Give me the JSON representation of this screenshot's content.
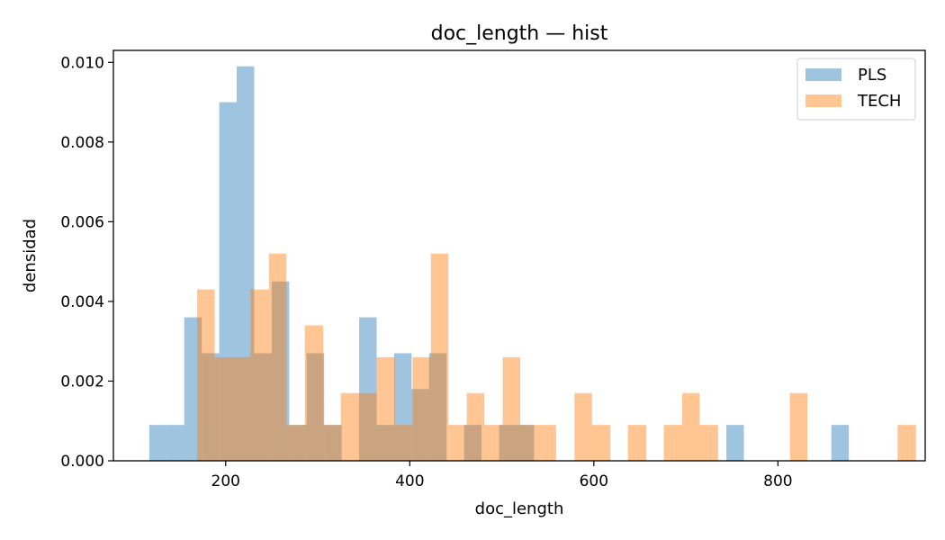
{
  "chart_data": {
    "type": "histogram",
    "title": "doc_length — hist",
    "xlabel": "doc_length",
    "ylabel": "densidad",
    "xlim": [
      78,
      960
    ],
    "ylim": [
      0,
      0.0103
    ],
    "xticks": [
      200,
      400,
      600,
      800
    ],
    "xtick_labels": [
      "200",
      "400",
      "600",
      "800"
    ],
    "yticks": [
      0,
      0.002,
      0.004,
      0.006,
      0.008,
      0.01
    ],
    "ytick_labels": [
      "0.000",
      "0.002",
      "0.004",
      "0.006",
      "0.008",
      "0.010"
    ],
    "legend_position": "top-right",
    "grid": false,
    "series": [
      {
        "name": "PLS",
        "color": "#1f77b4",
        "alpha": 0.43,
        "bins": [
          {
            "x0": 117,
            "x1": 136,
            "density": 0.0009
          },
          {
            "x0": 136,
            "x1": 155,
            "density": 0.0009
          },
          {
            "x0": 155,
            "x1": 174,
            "density": 0.0036
          },
          {
            "x0": 174,
            "x1": 193,
            "density": 0.0027
          },
          {
            "x0": 193,
            "x1": 212,
            "density": 0.009
          },
          {
            "x0": 212,
            "x1": 231,
            "density": 0.0099
          },
          {
            "x0": 231,
            "x1": 250,
            "density": 0.0027
          },
          {
            "x0": 250,
            "x1": 269,
            "density": 0.0045
          },
          {
            "x0": 269,
            "x1": 288,
            "density": 0.0009
          },
          {
            "x0": 288,
            "x1": 307,
            "density": 0.0027
          },
          {
            "x0": 307,
            "x1": 326,
            "density": 0.0009
          },
          {
            "x0": 345,
            "x1": 364,
            "density": 0.0036
          },
          {
            "x0": 364,
            "x1": 383,
            "density": 0.0009
          },
          {
            "x0": 383,
            "x1": 402,
            "density": 0.0027
          },
          {
            "x0": 402,
            "x1": 421,
            "density": 0.0018
          },
          {
            "x0": 421,
            "x1": 440,
            "density": 0.0027
          },
          {
            "x0": 459,
            "x1": 478,
            "density": 0.0009
          },
          {
            "x0": 497,
            "x1": 516,
            "density": 0.0009
          },
          {
            "x0": 516,
            "x1": 535,
            "density": 0.0009
          },
          {
            "x0": 744,
            "x1": 763,
            "density": 0.0009
          },
          {
            "x0": 858,
            "x1": 877,
            "density": 0.0009
          }
        ]
      },
      {
        "name": "TECH",
        "color": "#ff7f0e",
        "alpha": 0.45,
        "bins": [
          {
            "x0": 169,
            "x1": 188,
            "density": 0.0043
          },
          {
            "x0": 188,
            "x1": 208,
            "density": 0.0026
          },
          {
            "x0": 208,
            "x1": 227,
            "density": 0.0026
          },
          {
            "x0": 227,
            "x1": 247,
            "density": 0.0043
          },
          {
            "x0": 247,
            "x1": 266,
            "density": 0.0052
          },
          {
            "x0": 266,
            "x1": 286,
            "density": 0.0009
          },
          {
            "x0": 286,
            "x1": 306,
            "density": 0.0034
          },
          {
            "x0": 306,
            "x1": 325,
            "density": 0.0009
          },
          {
            "x0": 325,
            "x1": 345,
            "density": 0.0017
          },
          {
            "x0": 345,
            "x1": 364,
            "density": 0.0017
          },
          {
            "x0": 364,
            "x1": 384,
            "density": 0.0026
          },
          {
            "x0": 384,
            "x1": 403,
            "density": 0.0009
          },
          {
            "x0": 403,
            "x1": 423,
            "density": 0.0026
          },
          {
            "x0": 423,
            "x1": 442,
            "density": 0.0052
          },
          {
            "x0": 442,
            "x1": 462,
            "density": 0.0009
          },
          {
            "x0": 462,
            "x1": 481,
            "density": 0.0017
          },
          {
            "x0": 481,
            "x1": 501,
            "density": 0.0009
          },
          {
            "x0": 501,
            "x1": 520,
            "density": 0.0026
          },
          {
            "x0": 520,
            "x1": 540,
            "density": 0.0009
          },
          {
            "x0": 540,
            "x1": 559,
            "density": 0.0009
          },
          {
            "x0": 579,
            "x1": 598,
            "density": 0.0017
          },
          {
            "x0": 598,
            "x1": 618,
            "density": 0.0009
          },
          {
            "x0": 637,
            "x1": 657,
            "density": 0.0009
          },
          {
            "x0": 676,
            "x1": 696,
            "density": 0.0009
          },
          {
            "x0": 696,
            "x1": 715,
            "density": 0.0017
          },
          {
            "x0": 715,
            "x1": 735,
            "density": 0.0009
          },
          {
            "x0": 813,
            "x1": 832,
            "density": 0.0017
          },
          {
            "x0": 930,
            "x1": 950,
            "density": 0.0009
          }
        ]
      }
    ]
  }
}
